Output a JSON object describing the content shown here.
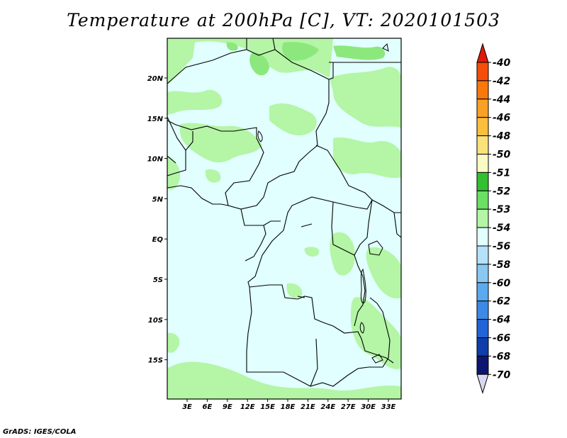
{
  "title": "Temperature at 200hPa [C], VT: 2020101503",
  "credit": "GrADS: IGES/COLA",
  "map": {
    "lon_ticks": [
      "3E",
      "6E",
      "9E",
      "12E",
      "15E",
      "18E",
      "21E",
      "24E",
      "27E",
      "30E",
      "33E"
    ],
    "lat_ticks": [
      "20N",
      "15N",
      "10N",
      "5N",
      "EQ",
      "5S",
      "10S",
      "15S"
    ],
    "field_colors": {
      "background": "#e0fffe",
      "light_green": "#b4f5a6",
      "green": "#8ce87c"
    }
  },
  "colorbar": {
    "labels": [
      "-40",
      "-42",
      "-44",
      "-46",
      "-48",
      "-50",
      "-51",
      "-52",
      "-53",
      "-54",
      "-56",
      "-58",
      "-60",
      "-62",
      "-64",
      "-66",
      "-68",
      "-70"
    ],
    "colors": [
      "#e01a0a",
      "#f44e0a",
      "#f9780a",
      "#f9a126",
      "#fbbf3c",
      "#fbe17a",
      "#fafac4",
      "#32c030",
      "#6ae064",
      "#b4f5a6",
      "#e0fffe",
      "#b4e2fa",
      "#8ac8f4",
      "#5aaaf0",
      "#3c8ae6",
      "#2164d8",
      "#0e3ea8",
      "#0c1670",
      "#d8d8f2"
    ]
  }
}
